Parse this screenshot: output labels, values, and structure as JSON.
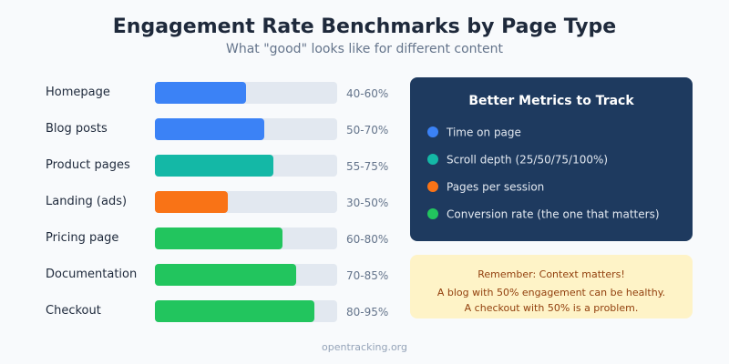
{
  "title": "Engagement Rate Benchmarks by Page Type",
  "subtitle": "What \"good\" looks like for different content",
  "chart_data": {
    "type": "bar",
    "orientation": "horizontal",
    "xlim": [
      0,
      100
    ],
    "grid": false,
    "categories": [
      "Homepage",
      "Blog posts",
      "Product pages",
      "Landing (ads)",
      "Pricing page",
      "Documentation",
      "Checkout"
    ],
    "values": [
      50,
      60,
      65,
      40,
      70,
      77.5,
      87.5
    ],
    "range_labels": [
      "40-60%",
      "50-70%",
      "55-75%",
      "30-50%",
      "60-80%",
      "70-85%",
      "80-95%"
    ],
    "colors": [
      "#3b82f6",
      "#3b82f6",
      "#14b8a6",
      "#f97316",
      "#22c55e",
      "#22c55e",
      "#22c55e"
    ],
    "track_color": "#e2e8f0"
  },
  "metrics_panel": {
    "title": "Better Metrics to Track",
    "background": "#1e3a5f",
    "items": [
      {
        "label": "Time on page",
        "color": "#3b82f6"
      },
      {
        "label": "Scroll depth (25/50/75/100%)",
        "color": "#14b8a6"
      },
      {
        "label": "Pages per session",
        "color": "#f97316"
      },
      {
        "label": "Conversion rate (the one that matters)",
        "color": "#22c55e"
      }
    ]
  },
  "note": {
    "heading": "Remember: Context matters!",
    "line1": "A blog with 50% engagement can be healthy.",
    "line2": "A checkout with 50% is a problem.",
    "background": "#fef3c7",
    "text_color": "#92400e"
  },
  "footer": "opentracking.org"
}
